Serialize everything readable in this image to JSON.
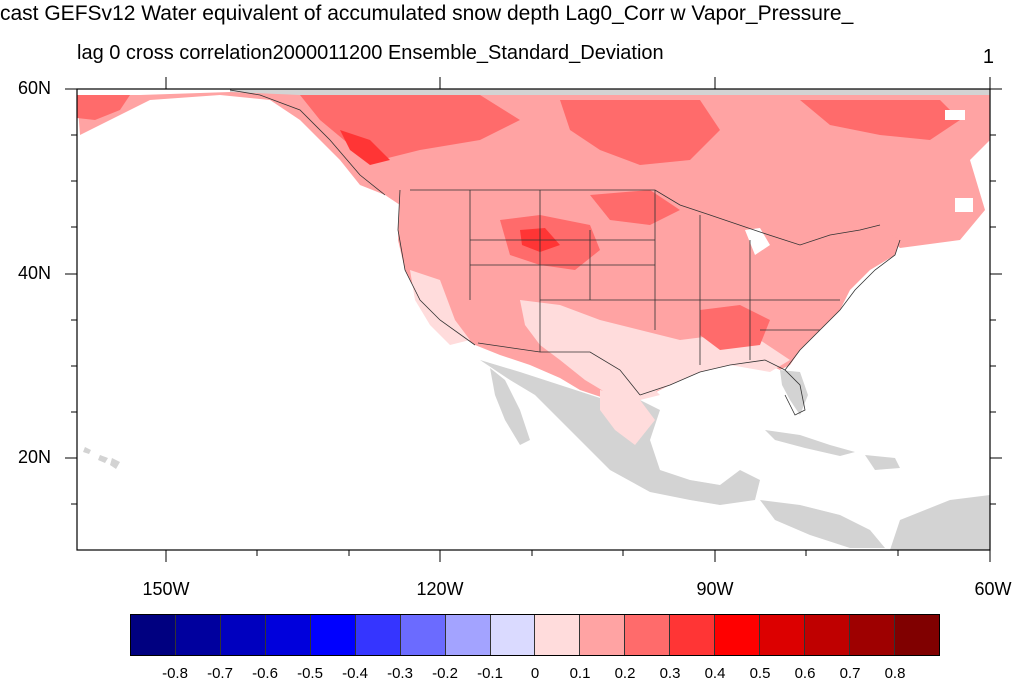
{
  "title": "cast GEFSv12 Water equivalent of accumulated snow depth Lag0_Corr w Vapor_Pressure_",
  "subtitle": "lag 0 cross correlation2000011200 Ensemble_Standard_Deviation",
  "corner_label": "1",
  "lat_labels": [
    "60N",
    "40N",
    "20N"
  ],
  "lon_labels": [
    "150W",
    "120W",
    "90W",
    "60W"
  ],
  "colorbar": {
    "colors": [
      "#000080",
      "#00009e",
      "#0000bf",
      "#0000dc",
      "#0000ff",
      "#3535ff",
      "#6b6bff",
      "#a3a3ff",
      "#dadaff",
      "#ffdcdc",
      "#ffa3a3",
      "#ff6b6b",
      "#ff3535",
      "#ff0000",
      "#dc0000",
      "#bf0000",
      "#9e0000",
      "#800000"
    ],
    "labels": [
      "-0.8",
      "-0.7",
      "-0.6",
      "-0.5",
      "-0.4",
      "-0.3",
      "-0.2",
      "-0.1",
      "0",
      "0.1",
      "0.2",
      "0.3",
      "0.4",
      "0.5",
      "0.6",
      "0.7",
      "0.8"
    ]
  }
}
